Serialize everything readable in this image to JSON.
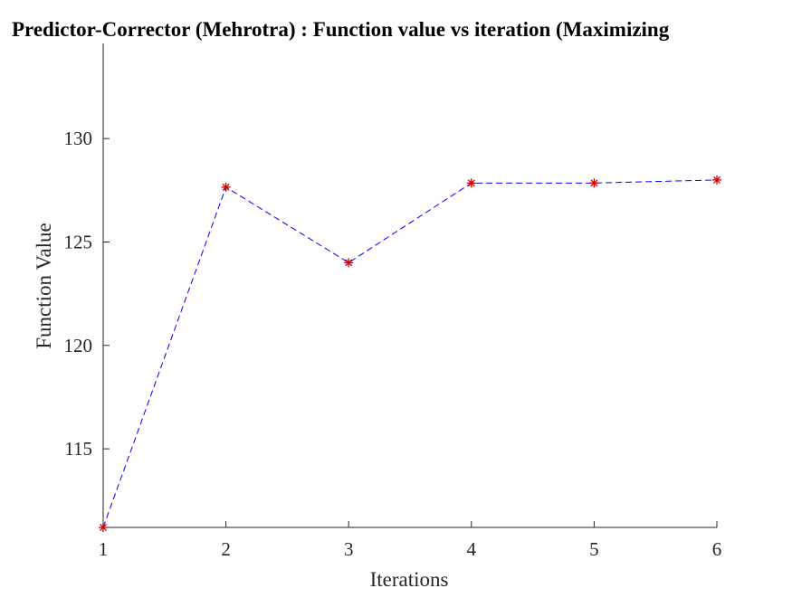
{
  "chart_data": {
    "type": "line",
    "title": "Predictor-Corrector (Mehrotra) : Function value vs iteration (Maximizing",
    "xlabel": "Iterations",
    "ylabel": "Function Value",
    "x": [
      1,
      2,
      3,
      4,
      5,
      6
    ],
    "series": [
      {
        "values": [
          111.2,
          127.65,
          124.0,
          127.85,
          127.85,
          128.0
        ],
        "line_color": "#0000ff",
        "line_style": "dashed",
        "marker": "asterisk",
        "marker_color": "#cc0000"
      }
    ],
    "xlim": [
      1,
      6
    ],
    "ylim": [
      111.2,
      134.6
    ],
    "xticks": [
      1,
      2,
      3,
      4,
      5,
      6
    ],
    "yticks": [
      115,
      120,
      125,
      130
    ],
    "grid": false,
    "legend": "none",
    "axis_color": "#262626"
  }
}
